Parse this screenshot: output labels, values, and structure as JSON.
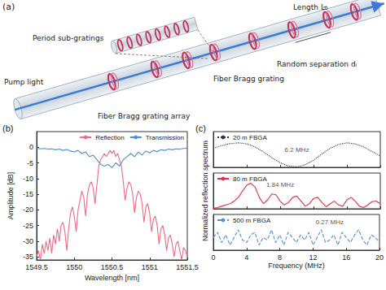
{
  "diagram": {
    "label": "(a)",
    "zoom_label": "Period sub-gratings",
    "length_label": "Length L₀",
    "separation_label": "Random separation dᵢ",
    "pump_label": "Pump light",
    "grating_label": "Fiber Bragg grating",
    "array_label": "Fiber Bragg grating array"
  },
  "chart_data": [
    {
      "type": "line",
      "title": "(b)",
      "xlabel": "Wavelength [nm]",
      "ylabel": "Amplitude [dB]",
      "xlim": [
        1549.5,
        1551.5
      ],
      "xticks": [
        1549.5,
        1550,
        1550.5,
        1551,
        1551.5
      ],
      "ylim": [
        -36,
        5
      ],
      "yticks": [
        -35,
        -30,
        -25,
        -20,
        -15,
        -10,
        -5,
        0
      ],
      "grid": false,
      "legend": "upper right",
      "series": [
        {
          "name": "Reflection",
          "color": "#f06a82",
          "line_style": "solid",
          "x": [
            1549.5,
            1549.525,
            1549.55,
            1549.575,
            1549.6,
            1549.625,
            1549.65,
            1549.675,
            1549.7,
            1549.725,
            1549.75,
            1549.775,
            1549.8,
            1549.825,
            1549.85,
            1549.875,
            1549.9,
            1549.925,
            1549.95,
            1549.975,
            1550,
            1550.025,
            1550.05,
            1550.075,
            1550.1,
            1550.125,
            1550.15,
            1550.175,
            1550.2,
            1550.225,
            1550.25,
            1550.275,
            1550.3,
            1550.325,
            1550.35,
            1550.375,
            1550.4,
            1550.425,
            1550.45,
            1550.475,
            1550.5,
            1550.525,
            1550.55,
            1550.575,
            1550.6,
            1550.625,
            1550.65,
            1550.675,
            1550.7,
            1550.725,
            1550.75,
            1550.775,
            1550.8,
            1550.825,
            1550.85,
            1550.875,
            1550.9,
            1550.925,
            1550.95,
            1550.975,
            1551,
            1551.025,
            1551.05,
            1551.075,
            1551.1,
            1551.125,
            1551.15,
            1551.175,
            1551.2,
            1551.225,
            1551.25,
            1551.275,
            1551.3,
            1551.325,
            1551.35,
            1551.375,
            1551.4,
            1551.425,
            1551.45,
            1551.475,
            1551.5
          ],
          "values": [
            -35,
            -33,
            -36,
            -31,
            -34,
            -30,
            -33,
            -29,
            -34,
            -28,
            -31,
            -26,
            -30,
            -25,
            -24,
            -27,
            -33,
            -26,
            -21,
            -19,
            -22,
            -27,
            -20,
            -17,
            -14,
            -16,
            -22,
            -15,
            -12,
            -11,
            -13,
            -18,
            -12,
            -6,
            -4,
            -3,
            -2,
            -3,
            -2,
            -1,
            -2,
            -1,
            -3,
            -2,
            -4,
            -6,
            -11,
            -17,
            -13,
            -11,
            -12,
            -15,
            -21,
            -16,
            -14,
            -15,
            -18,
            -24,
            -19,
            -18,
            -21,
            -27,
            -23,
            -22,
            -25,
            -31,
            -26,
            -25,
            -28,
            -33,
            -29,
            -28,
            -31,
            -35,
            -31,
            -30,
            -33,
            -36,
            -32,
            -33,
            -35
          ]
        },
        {
          "name": "Transmission",
          "color": "#4c8fd8",
          "line_style": "solid",
          "x": [
            1549.5,
            1549.55,
            1549.6,
            1549.65,
            1549.7,
            1549.75,
            1549.8,
            1549.85,
            1549.9,
            1549.95,
            1550,
            1550.05,
            1550.1,
            1550.15,
            1550.2,
            1550.25,
            1550.3,
            1550.35,
            1550.4,
            1550.45,
            1550.5,
            1550.55,
            1550.6,
            1550.65,
            1550.7,
            1550.75,
            1550.8,
            1550.85,
            1550.9,
            1550.95,
            1551,
            1551.05,
            1551.1,
            1551.15,
            1551.2,
            1551.25,
            1551.3,
            1551.35,
            1551.4,
            1551.45,
            1551.5
          ],
          "values": [
            -0.3,
            -0.5,
            -0.4,
            -0.6,
            -0.5,
            -0.8,
            -0.6,
            -1.0,
            -0.7,
            -1.2,
            -1.5,
            -1.0,
            -2.0,
            -1.5,
            -3.0,
            -2.5,
            -4.0,
            -5.5,
            -6.0,
            -5.5,
            -6.5,
            -5.0,
            -6.0,
            -4.0,
            -3.0,
            -2.0,
            -3.0,
            -1.5,
            -2.5,
            -1.2,
            -1.8,
            -1.0,
            -1.4,
            -0.8,
            -1.0,
            -0.6,
            -0.8,
            -0.5,
            -0.6,
            -0.4,
            -0.3
          ]
        }
      ]
    },
    {
      "type": "line",
      "title": "(c)",
      "xlim": [
        0,
        20
      ],
      "xticks": [
        0,
        4,
        8,
        12,
        16,
        20
      ],
      "ylim": [
        0,
        1.4
      ],
      "grid": false,
      "legend": "upper left",
      "tick_labels": false,
      "annotations": [
        {
          "text": "6.2 MHz",
          "x": 10,
          "y": 0.7
        }
      ],
      "series": [
        {
          "name": "20 m FBGA",
          "color": "#333333",
          "line_style": "dotted",
          "x": [
            0,
            1,
            2,
            3,
            4,
            5,
            6,
            7,
            8,
            9,
            10,
            11,
            12,
            13,
            14,
            15,
            16,
            17,
            18,
            19,
            20
          ],
          "values": [
            0.75,
            0.85,
            0.93,
            0.96,
            0.92,
            0.8,
            0.6,
            0.38,
            0.18,
            0.05,
            0.02,
            0.1,
            0.28,
            0.52,
            0.75,
            0.9,
            0.96,
            0.92,
            0.8,
            0.62,
            0.45
          ]
        }
      ]
    },
    {
      "type": "line",
      "ylabel": "Normalized reflection spectrum",
      "xlim": [
        0,
        20
      ],
      "xticks": [
        0,
        4,
        8,
        12,
        16,
        20
      ],
      "ylim": [
        0,
        1.4
      ],
      "grid": false,
      "legend": "upper left",
      "tick_labels": false,
      "annotations": [
        {
          "text": "1.84 MHz",
          "x": 8,
          "y": 0.95
        }
      ],
      "series": [
        {
          "name": "80 m FBGA",
          "color": "#e8303a",
          "line_style": "solid",
          "x": [
            0,
            0.5,
            1,
            1.5,
            2,
            2.5,
            3,
            3.5,
            4,
            4.5,
            5,
            5.5,
            6,
            6.5,
            7,
            7.5,
            8,
            8.5,
            9,
            9.5,
            10,
            10.5,
            11,
            11.5,
            12,
            12.5,
            13,
            13.5,
            14,
            14.5,
            15,
            15.5,
            16,
            16.5,
            17,
            17.5,
            18,
            18.5,
            19,
            19.5,
            20
          ],
          "values": [
            0.02,
            0.05,
            0.1,
            0.15,
            0.2,
            0.3,
            0.45,
            0.7,
            0.92,
            1.0,
            0.85,
            0.45,
            0.2,
            0.35,
            0.58,
            0.55,
            0.3,
            0.15,
            0.25,
            0.45,
            0.5,
            0.3,
            0.1,
            0.2,
            0.4,
            0.45,
            0.25,
            0.08,
            0.2,
            0.3,
            0.15,
            0.1,
            0.35,
            0.45,
            0.3,
            0.1,
            0.05,
            0.15,
            0.28,
            0.3,
            0.2
          ]
        }
      ]
    },
    {
      "type": "line",
      "xlabel": "Frequency (MHz)",
      "xlim": [
        0,
        20
      ],
      "xticks": [
        0,
        4,
        8,
        12,
        16,
        20
      ],
      "ylim": [
        0,
        1.4
      ],
      "grid": false,
      "legend": "upper left",
      "tick_labels": "x",
      "annotations": [
        {
          "text": "0.27 MHz",
          "x": 14,
          "y": 1.1
        }
      ],
      "series": [
        {
          "name": "500 m FBGA",
          "color": "#4c8fd8",
          "line_style": "dashed",
          "x": [
            0,
            0.5,
            1,
            1.5,
            2,
            2.5,
            3,
            3.5,
            4,
            4.5,
            5,
            5.5,
            6,
            6.5,
            7,
            7.5,
            8,
            8.5,
            9,
            9.5,
            10,
            10.5,
            11,
            11.5,
            12,
            12.5,
            13,
            13.5,
            14,
            14.5,
            15,
            15.5,
            16,
            16.5,
            17,
            17.5,
            18,
            18.5,
            19,
            19.5,
            20
          ],
          "values": [
            0.5,
            0.7,
            0.3,
            0.6,
            0.2,
            0.5,
            0.8,
            0.4,
            0.3,
            0.6,
            0.7,
            0.2,
            0.5,
            0.4,
            0.8,
            0.3,
            0.6,
            0.2,
            0.7,
            0.5,
            0.3,
            0.6,
            0.4,
            0.7,
            0.2,
            0.5,
            0.8,
            0.3,
            0.4,
            0.6,
            0.2,
            0.7,
            0.5,
            0.3,
            0.6,
            0.8,
            0.4,
            0.2,
            0.6,
            0.5,
            0.3
          ]
        }
      ]
    }
  ]
}
